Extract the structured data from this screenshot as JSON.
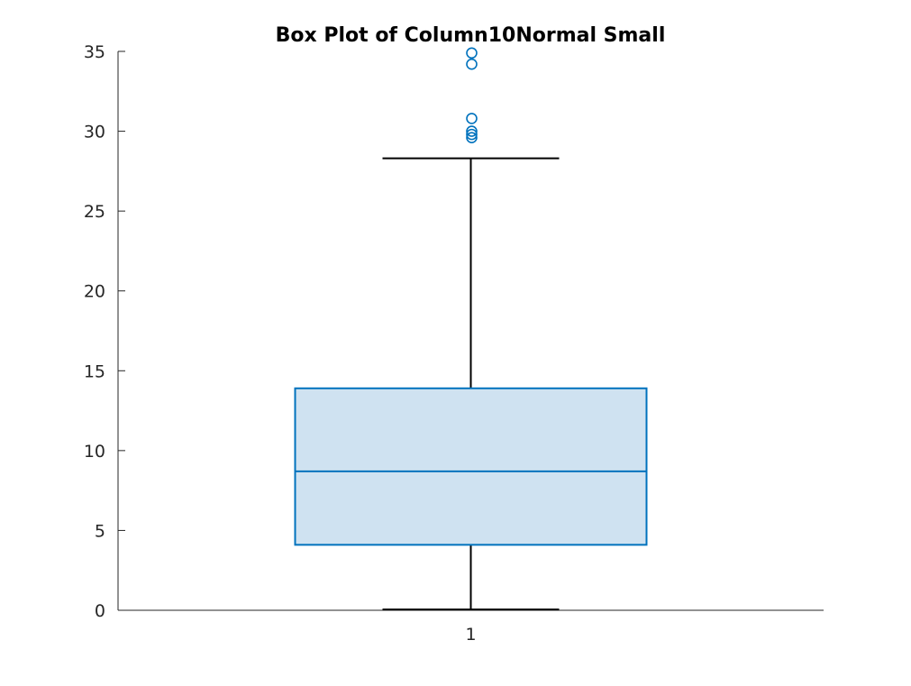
{
  "chart_data": {
    "type": "box",
    "title": "Box Plot of Column10Normal Small",
    "xlabel": "",
    "ylabel": "",
    "ylim": [
      0,
      35
    ],
    "yticks": [
      0,
      5,
      10,
      15,
      20,
      25,
      30,
      35
    ],
    "categories": [
      "1"
    ],
    "boxes": [
      {
        "category": "1",
        "whisker_low": 0.05,
        "q1": 4.1,
        "median": 8.7,
        "q3": 13.9,
        "whisker_high": 28.3,
        "outliers": [
          29.6,
          29.8,
          30.0,
          30.8,
          34.2,
          34.9
        ]
      }
    ],
    "box_edge_color": "#0072bd",
    "box_fill_color": "#cfe2f1",
    "whisker_color": "#000000",
    "axis_color": "#262626",
    "grid": false
  }
}
